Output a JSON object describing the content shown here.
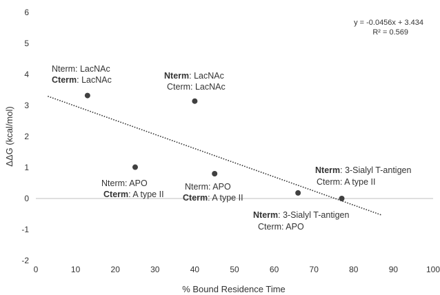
{
  "chart_data": {
    "type": "scatter",
    "title": "",
    "xlabel": "% Bound Residence Time",
    "ylabel": "ΔΔG (kcal/mol)",
    "xlim": [
      0,
      100
    ],
    "ylim": [
      -2,
      6
    ],
    "x_ticks": [
      0,
      10,
      20,
      30,
      40,
      50,
      60,
      70,
      80,
      90,
      100
    ],
    "y_ticks": [
      -2,
      -1,
      0,
      1,
      2,
      3,
      4,
      5,
      6
    ],
    "grid": false,
    "colors": {
      "marker": "#404040",
      "trendline": "#333333",
      "axis": "#bfbfbf"
    },
    "points": [
      {
        "x": 13,
        "y": 3.32,
        "label": [
          {
            "key": "Nterm",
            "value": ": LacNAc",
            "bold": false
          },
          {
            "key": "Cterm",
            "value": ": LacNAc",
            "bold": true
          }
        ]
      },
      {
        "x": 40,
        "y": 3.14,
        "label": [
          {
            "key": "Nterm",
            "value": ": LacNAc",
            "bold": true
          },
          {
            "key": "Cterm",
            "value": ": LacNAc",
            "bold": false
          }
        ]
      },
      {
        "x": 25,
        "y": 1.01,
        "label": [
          {
            "key": "Nterm",
            "value": ": APO",
            "bold": false
          },
          {
            "key": "Cterm",
            "value": ": A type II",
            "bold": true
          }
        ]
      },
      {
        "x": 45,
        "y": 0.8,
        "label": [
          {
            "key": "Nterm",
            "value": ": APO",
            "bold": false
          },
          {
            "key": "Cterm",
            "value": ": A type II",
            "bold": true
          }
        ]
      },
      {
        "x": 66,
        "y": 0.18,
        "label": [
          {
            "key": "Nterm",
            "value": ": 3-Sialyl T-antigen",
            "bold": true
          },
          {
            "key": "Cterm",
            "value": ": APO",
            "bold": false
          }
        ]
      },
      {
        "x": 77,
        "y": 0.0,
        "label": [
          {
            "key": "Nterm",
            "value": ": 3-Sialyl T-antigen",
            "bold": true
          },
          {
            "key": "Cterm",
            "value": ": A type II",
            "bold": false
          }
        ]
      }
    ],
    "trendline": {
      "type": "linear",
      "slope": -0.0456,
      "intercept": 3.434,
      "x_range": [
        3,
        87
      ],
      "equation": "y = -0.0456x + 3.434",
      "r2": "R² = 0.569"
    }
  }
}
